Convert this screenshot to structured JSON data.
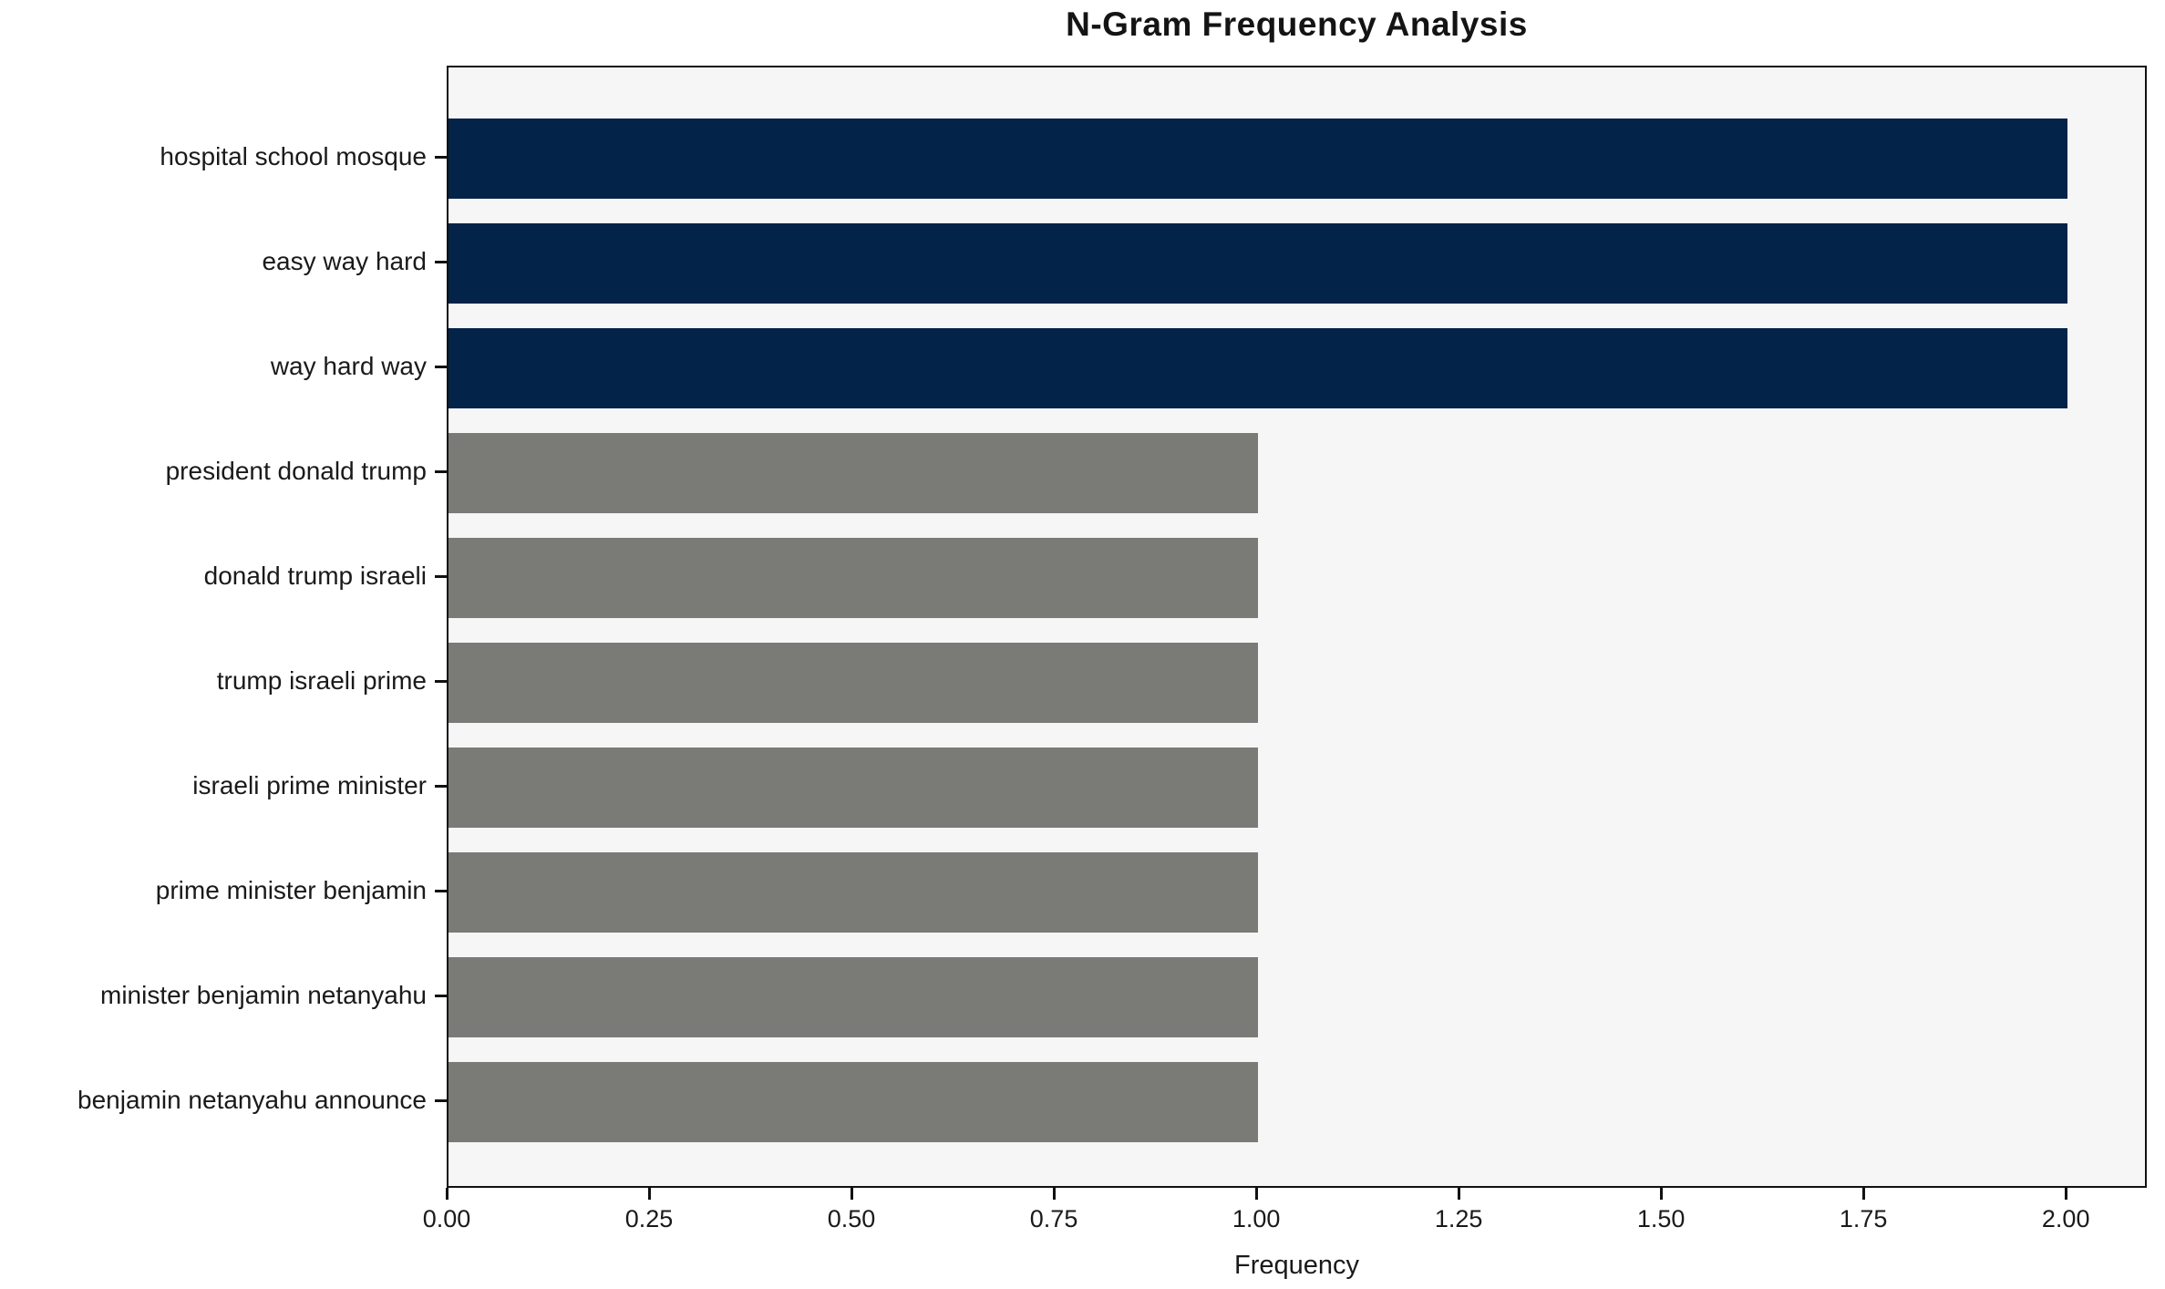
{
  "chart_data": {
    "type": "bar",
    "orientation": "horizontal",
    "title": "N-Gram Frequency Analysis",
    "xlabel": "Frequency",
    "ylabel": "",
    "categories": [
      "hospital school mosque",
      "easy way hard",
      "way hard way",
      "president donald trump",
      "donald trump israeli",
      "trump israeli prime",
      "israeli prime minister",
      "prime minister benjamin",
      "minister benjamin netanyahu",
      "benjamin netanyahu announce"
    ],
    "values": [
      2,
      2,
      2,
      1,
      1,
      1,
      1,
      1,
      1,
      1
    ],
    "bar_colors": [
      "#032349",
      "#032349",
      "#032349",
      "#7a7a77",
      "#7a7a77",
      "#7a7a77",
      "#7a7a77",
      "#7a7a77",
      "#7a7a77",
      "#7a7a77"
    ],
    "highlight_color": "#032349",
    "default_color": "#7a7a77",
    "xlim": [
      0,
      2.1
    ],
    "x_ticks": {
      "values": [
        0,
        0.25,
        0.5,
        0.75,
        1.0,
        1.25,
        1.5,
        1.75,
        2.0
      ],
      "labels": [
        "0.00",
        "0.25",
        "0.50",
        "0.75",
        "1.00",
        "1.25",
        "1.50",
        "1.75",
        "2.00"
      ]
    },
    "grid": false,
    "legend": null,
    "plot_background": "#f6f6f6"
  }
}
